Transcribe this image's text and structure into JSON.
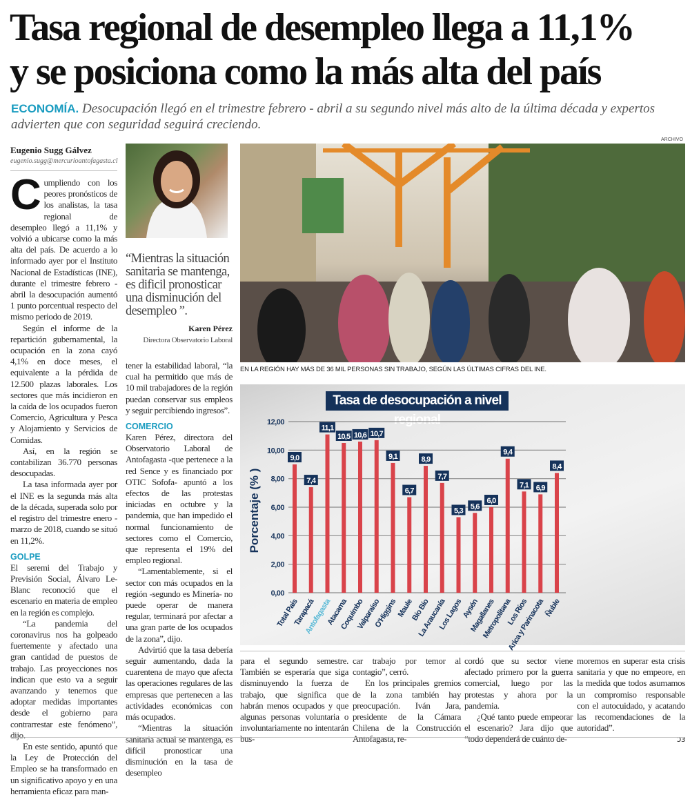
{
  "headline": {
    "line1": "Tasa regional de desempleo llega a 11,1%",
    "line2": "y se posiciona como la más alta del país"
  },
  "deck": {
    "section": "ECONOMÍA.",
    "text": "Desocupación llegó en el trimestre febrero - abril a su segundo nivel más alto de la última década y expertos advierten que con seguridad seguirá creciendo."
  },
  "byline": {
    "author": "Eugenio Sugg Gálvez",
    "email": "eugenio.sugg@mercurioantofagasta.cl"
  },
  "col1": {
    "dropcap": "C",
    "p1": "umpliendo con los peores pronósticos de los analistas, la tasa regional de desempleo llegó a 11,1% y volvió a ubicarse como la más alta del país. De acuerdo a lo informado ayer por el Instituto Nacional de Estadísticas (INE), durante el trimestre febrero - abril la desocupación aumentó 1 punto porcentual respecto del mismo periodo de 2019.",
    "p2": "Según el informe de la repartición gubernamental, la ocupación en la zona cayó 4,1% en doce meses, el equivalente a la pérdida de 12.500 plazas laborales. Los sectores que más incidieron en la caída de los ocupados fueron Comercio, Agricultura y Pesca y Alojamiento y Servicios de Comidas.",
    "p3": "Así, en la región se contabilizan 36.770 personas desocupadas.",
    "p4": "La tasa informada ayer por el INE es la segunda más alta de la década, superada solo por el registro del trimestre enero - marzo de 2018, cuando se situó en 11,2%.",
    "subhead": "GOLPE",
    "p5": "El seremi del Trabajo y Previsión Social, Álvaro Le-Blanc reconoció que el escenario en materia de empleo en la región es complejo.",
    "p6": "“La pandemia del coronavirus nos ha golpeado fuertemente y afectado una gran cantidad de puestos de trabajo. Las proyecciones nos indican que esto va a seguir avanzando y tenemos que adoptar medidas importantes desde el gobierno para contrarrestar este fenómeno”, dijo.",
    "p7": "En este sentido, apuntó que la Ley de Protección del Empleo se ha transformado en un significativo apoyo y en una herramienta eficaz para man-"
  },
  "pullquote": {
    "text": "“Mientras la situación sanitaria se mantenga, es dificil pronosticar una disminución del desempleo ”.",
    "name": "Karen Pérez",
    "role": "Directora Observatorio Laboral"
  },
  "col2": {
    "p1": "tener la estabilidad laboral, “la cual ha permitido que más de 10 mil trabajadores de la región puedan conservar sus empleos y seguir percibiendo ingresos”.",
    "subhead": "COMERCIO",
    "p2": "Karen Pérez, directora del Observatorio Laboral de Antofagasta -que pertenece a la red Sence y es financiado por OTIC Sofofa- apuntó a los efectos de las protestas iniciadas en octubre y la pandemia, que han impedido el normal funcionamiento de sectores como el Comercio, que representa el 19% del empleo regional.",
    "p3": "“Lamentablemente, si el sector con más ocupados en la región -segundo es Minería- no puede operar de manera regular, terminará por afectar a una gran parte de los ocupados de la zona”, dijo.",
    "p4": "Advirtió que la tasa debería seguir aumentando, dada la cuarentena de mayo que afecta las operaciones regulares de las empresas que pertenecen a las actividades económicas con más ocupados.",
    "p5": "“Mientras la situación sanitaria actual se mantenga, es difícil pronosticar una disminución en la tasa de desempleo"
  },
  "photo": {
    "credit": "ARCHIVO",
    "caption": "EN LA REGIÓN HAY MÁS DE 36 MIL PERSONAS SIN TRABAJO, SEGÚN LAS ÚLTIMAS CIFRAS DEL INE."
  },
  "col3": {
    "p1": "para el segundo semestre. También se esperaría que siga disminuyendo la fuerza de trabajo, que significa que habrán menos ocupados y que algunas personas voluntaria o involuntariamente no intentarán bus-"
  },
  "col4": {
    "p1": "car trabajo por temor al contagio”, cerró.",
    "p2": "En los principales gremios de la zona también hay preocupación. Iván Jara, presidente de la Cámara Chilena de la Construcción Antofagasta, re-"
  },
  "col5": {
    "p1": "cordó que su sector viene afectado primero por la guerra comercial, luego por las protestas y ahora por la pandemia.",
    "p2": "¿Qué tanto puede empeorar el escenario? Jara dijo que “todo dependerá de cuánto de-"
  },
  "col6": {
    "p1": "moremos en superar esta crisis sanitaria y que no empeore, en la medida que todos asumamos un compromiso responsable con el autocuidado, y acatando las recomendaciones de la autoridad”.",
    "end_icon": "end-of-article-mark"
  },
  "chart_data": {
    "type": "bar",
    "title": "Tasa de desocupación a nivel regional",
    "ylabel": "Porcentaje (% )",
    "xlabel": "",
    "ylim": [
      0,
      12
    ],
    "yticks": [
      "0,00",
      "2,00",
      "4,00",
      "6,00",
      "8,00",
      "10,00",
      "12,00"
    ],
    "grid": true,
    "categories": [
      "Total País",
      "Tarapacá",
      "Antofagasta",
      "Atacama",
      "Coquimbo",
      "Valparaíso",
      "O'Higgins",
      "Maule",
      "Bío Bío",
      "La Araucanía",
      "Los Lagos",
      "Aysén",
      "Magallanes",
      "Metropolitana",
      "Los Ríos",
      "Arica y Parinacota",
      "Ñuble"
    ],
    "values": [
      9.0,
      7.4,
      11.1,
      10.5,
      10.6,
      10.7,
      9.1,
      6.7,
      8.9,
      7.7,
      5.3,
      5.6,
      6.0,
      9.4,
      7.1,
      6.9,
      8.4
    ],
    "value_labels": [
      "9,0",
      "7,4",
      "11,1",
      "10,5",
      "10,6",
      "10,7",
      "9,1",
      "6,7",
      "8,9",
      "7,7",
      "5,3",
      "5,6",
      "6,0",
      "9,4",
      "7,1",
      "6,9",
      "8,4"
    ],
    "highlight_category": "Antofagasta",
    "colors": {
      "bar": "#d9434a",
      "label_box": "#15325a",
      "axis_text": "#15325a",
      "highlight_text": "#5bbad6"
    }
  }
}
